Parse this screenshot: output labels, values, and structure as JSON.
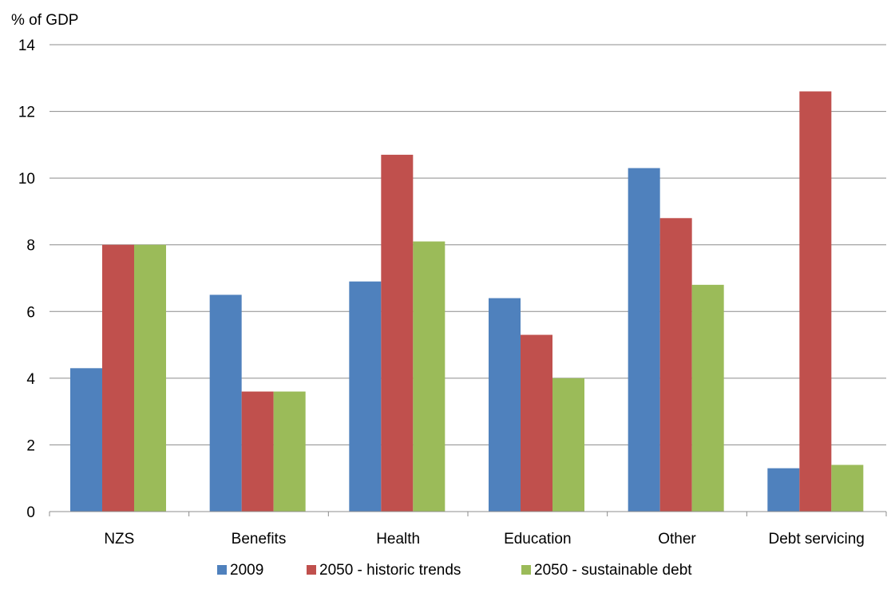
{
  "chart_data": {
    "type": "bar",
    "title": "",
    "xlabel": "",
    "ylabel": "% of GDP",
    "ylim": [
      0,
      14
    ],
    "yticks": [
      0,
      2,
      4,
      6,
      8,
      10,
      12,
      14
    ],
    "grid": true,
    "legend_position": "bottom",
    "categories": [
      "NZS",
      "Benefits",
      "Health",
      "Education",
      "Other",
      "Debt servicing"
    ],
    "series": [
      {
        "name": "2009",
        "color": "#4F81BD",
        "values": [
          4.3,
          6.5,
          6.9,
          6.4,
          10.3,
          1.3
        ]
      },
      {
        "name": "2050 - historic trends",
        "color": "#C0504D",
        "values": [
          8.0,
          3.6,
          10.7,
          5.3,
          8.8,
          12.6
        ]
      },
      {
        "name": "2050 - sustainable debt",
        "color": "#9BBB59",
        "values": [
          8.0,
          3.6,
          8.1,
          4.0,
          6.8,
          1.4
        ]
      }
    ]
  }
}
